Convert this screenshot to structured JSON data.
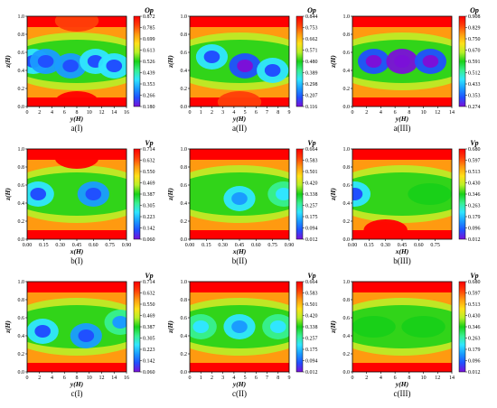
{
  "figure": {
    "colorscale": [
      "#7b10d8",
      "#2050ff",
      "#1a9cff",
      "#30e6ff",
      "#38f090",
      "#18d018",
      "#b8f028",
      "#ffe018",
      "#ff9a10",
      "#ff3e08",
      "#ff0000"
    ],
    "panel_background": "#ffa000",
    "band_color": "#ff2a00"
  },
  "chart_data": [
    {
      "type": "heatmap",
      "panel_id": "a1",
      "caption": "a(I)",
      "colorbar_label": "Op",
      "xlabel": "y(H)",
      "ylabel": "z(H)",
      "x_ticks": [
        "0",
        "2",
        "4",
        "6",
        "8",
        "10",
        "12",
        "14",
        "16"
      ],
      "y_ticks": [
        "0.0",
        "0.2",
        "0.4",
        "0.6",
        "0.8",
        "1.0"
      ],
      "colorbar_ticks": [
        "0.872",
        "0.785",
        "0.699",
        "0.613",
        "0.526",
        "0.439",
        "0.353",
        "0.266",
        "0.180"
      ],
      "xlim": [
        0,
        16
      ],
      "ylim": [
        0,
        1
      ],
      "range": [
        0.18,
        0.872
      ],
      "pattern": "low values in central band (z≈0.15–0.8), high values near top and bottom walls",
      "cells": [
        {
          "x": 1,
          "z": 0.5,
          "v": 0.37
        },
        {
          "x": 3,
          "z": 0.5,
          "v": 0.35
        },
        {
          "x": 7,
          "z": 0.45,
          "v": 0.33
        },
        {
          "x": 11,
          "z": 0.5,
          "v": 0.36
        },
        {
          "x": 14,
          "z": 0.45,
          "v": 0.38
        },
        {
          "x": 8,
          "z": 0.05,
          "v": 0.85
        },
        {
          "x": 8,
          "z": 0.95,
          "v": 0.82
        }
      ]
    },
    {
      "type": "heatmap",
      "panel_id": "a2",
      "caption": "a(II)",
      "colorbar_label": "Op",
      "xlabel": "y(H)",
      "ylabel": "z(H)",
      "x_ticks": [
        "0",
        "1",
        "2",
        "3",
        "4",
        "5",
        "6",
        "7",
        "8",
        "9"
      ],
      "y_ticks": [
        "0.0",
        "0.2",
        "0.4",
        "0.6",
        "0.8",
        "1.0"
      ],
      "colorbar_ticks": [
        "0.844",
        "0.753",
        "0.662",
        "0.571",
        "0.480",
        "0.389",
        "0.298",
        "0.207",
        "0.116"
      ],
      "xlim": [
        0,
        9
      ],
      "ylim": [
        0,
        1
      ],
      "range": [
        0.116,
        0.844
      ],
      "pattern": "low-value core between z≈0.2 and 0.85, thicker toward right side",
      "cells": [
        {
          "x": 2,
          "z": 0.55,
          "v": 0.32
        },
        {
          "x": 5,
          "z": 0.45,
          "v": 0.2
        },
        {
          "x": 7.5,
          "z": 0.4,
          "v": 0.3
        },
        {
          "x": 4.5,
          "z": 0.05,
          "v": 0.8
        }
      ]
    },
    {
      "type": "heatmap",
      "panel_id": "a3",
      "caption": "a(III)",
      "colorbar_label": "Op",
      "xlabel": "y(H)",
      "ylabel": "z(H)",
      "x_ticks": [
        "0",
        "2",
        "4",
        "6",
        "8",
        "10",
        "12",
        "14"
      ],
      "y_ticks": [
        "0.0",
        "0.2",
        "0.4",
        "0.6",
        "0.8",
        "1.0"
      ],
      "colorbar_ticks": [
        "0.908",
        "0.829",
        "0.750",
        "0.670",
        "0.591",
        "0.512",
        "0.433",
        "0.353",
        "0.274"
      ],
      "xlim": [
        0,
        14
      ],
      "ylim": [
        0,
        1
      ],
      "range": [
        0.274,
        0.908
      ],
      "pattern": "smooth low-value core centered near z≈0.5",
      "cells": [
        {
          "x": 3,
          "z": 0.5,
          "v": 0.34
        },
        {
          "x": 7,
          "z": 0.5,
          "v": 0.3
        },
        {
          "x": 11,
          "z": 0.5,
          "v": 0.33
        }
      ]
    },
    {
      "type": "heatmap",
      "panel_id": "b1",
      "caption": "b(I)",
      "colorbar_label": "Vp",
      "xlabel": "x(H)",
      "ylabel": "z(H)",
      "x_ticks": [
        "0.00",
        "0.15",
        "0.30",
        "0.45",
        "0.60",
        "0.75",
        "0.90"
      ],
      "y_ticks": [
        "0.0",
        "0.2",
        "0.4",
        "0.6",
        "0.8",
        "1.0"
      ],
      "colorbar_ticks": [
        "0.714",
        "0.632",
        "0.550",
        "0.469",
        "0.387",
        "0.305",
        "0.223",
        "0.142",
        "0.060"
      ],
      "xlim": [
        0,
        0.9
      ],
      "ylim": [
        0,
        1
      ],
      "range": [
        0.06,
        0.714
      ],
      "pattern": "green band at z≈0.3–0.65 with two blue cores near x≈0.1 and x≈0.6",
      "cells": [
        {
          "x": 0.1,
          "z": 0.5,
          "v": 0.25
        },
        {
          "x": 0.6,
          "z": 0.5,
          "v": 0.22
        },
        {
          "x": 0.45,
          "z": 0.9,
          "v": 0.7
        }
      ]
    },
    {
      "type": "heatmap",
      "panel_id": "b2",
      "caption": "b(II)",
      "colorbar_label": "Vp",
      "xlabel": "x(H)",
      "ylabel": "z(H)",
      "x_ticks": [
        "0.00",
        "0.15",
        "0.30",
        "0.45",
        "0.60",
        "0.75",
        "0.90"
      ],
      "y_ticks": [
        "0.0",
        "0.2",
        "0.4",
        "0.6",
        "0.8",
        "1.0"
      ],
      "colorbar_ticks": [
        "0.664",
        "0.583",
        "0.501",
        "0.420",
        "0.338",
        "0.257",
        "0.175",
        "0.094",
        "0.012"
      ],
      "xlim": [
        0,
        0.9
      ],
      "ylim": [
        0,
        1
      ],
      "range": [
        0.012,
        0.664
      ],
      "pattern": "broad green band with blue core centered near x≈0.45, z≈0.45",
      "cells": [
        {
          "x": 0.45,
          "z": 0.45,
          "v": 0.22
        },
        {
          "x": 0.85,
          "z": 0.5,
          "v": 0.28
        }
      ]
    },
    {
      "type": "heatmap",
      "panel_id": "b3",
      "caption": "b(III)",
      "colorbar_label": "Vp",
      "xlabel": "x(H)",
      "ylabel": "z(H)",
      "x_ticks": [
        "0.00",
        "0.15",
        "0.30",
        "0.45",
        "0.60",
        "0.75"
      ],
      "y_ticks": [
        "0.0",
        "0.2",
        "0.4",
        "0.6",
        "0.8",
        "1.0"
      ],
      "colorbar_ticks": [
        "0.680",
        "0.597",
        "0.513",
        "0.430",
        "0.346",
        "0.263",
        "0.179",
        "0.096",
        "0.012"
      ],
      "xlim": [
        0,
        0.9
      ],
      "ylim": [
        0,
        1
      ],
      "range": [
        0.012,
        0.68
      ],
      "pattern": "blue core at left edge z≈0.5, green region on right, red column near x≈0.3",
      "cells": [
        {
          "x": 0.02,
          "z": 0.5,
          "v": 0.2
        },
        {
          "x": 0.7,
          "z": 0.5,
          "v": 0.35
        },
        {
          "x": 0.3,
          "z": 0.1,
          "v": 0.68
        }
      ]
    },
    {
      "type": "heatmap",
      "panel_id": "c1",
      "caption": "c(I)",
      "colorbar_label": "Vp",
      "xlabel": "y(H)",
      "ylabel": "z(H)",
      "x_ticks": [
        "0",
        "2",
        "4",
        "6",
        "8",
        "10",
        "12",
        "14",
        "16"
      ],
      "y_ticks": [
        "0.0",
        "0.2",
        "0.4",
        "0.6",
        "0.8",
        "1.0"
      ],
      "colorbar_ticks": [
        "0.714",
        "0.632",
        "0.550",
        "0.469",
        "0.387",
        "0.305",
        "0.223",
        "0.142",
        "0.060"
      ],
      "xlim": [
        0,
        16
      ],
      "ylim": [
        0,
        1
      ],
      "range": [
        0.06,
        0.714
      ],
      "pattern": "irregular green/blue patches along z≈0.3–0.7",
      "cells": [
        {
          "x": 2.5,
          "z": 0.45,
          "v": 0.25
        },
        {
          "x": 9.5,
          "z": 0.4,
          "v": 0.2
        },
        {
          "x": 15,
          "z": 0.55,
          "v": 0.3
        }
      ]
    },
    {
      "type": "heatmap",
      "panel_id": "c2",
      "caption": "c(II)",
      "colorbar_label": "Vp",
      "xlabel": "y(H)",
      "ylabel": "z(H)",
      "x_ticks": [
        "0",
        "1",
        "2",
        "3",
        "4",
        "5",
        "6",
        "7",
        "8",
        "9"
      ],
      "y_ticks": [
        "0.0",
        "0.2",
        "0.4",
        "0.6",
        "0.8",
        "1.0"
      ],
      "colorbar_ticks": [
        "0.664",
        "0.583",
        "0.501",
        "0.420",
        "0.338",
        "0.257",
        "0.175",
        "0.094",
        "0.012"
      ],
      "xlim": [
        0,
        9
      ],
      "ylim": [
        0,
        1
      ],
      "range": [
        0.012,
        0.664
      ],
      "pattern": "green band with blue cores at y≈1, 4.5 and 8",
      "cells": [
        {
          "x": 1,
          "z": 0.5,
          "v": 0.28
        },
        {
          "x": 4.5,
          "z": 0.5,
          "v": 0.22
        },
        {
          "x": 8,
          "z": 0.5,
          "v": 0.28
        }
      ]
    },
    {
      "type": "heatmap",
      "panel_id": "c3",
      "caption": "c(III)",
      "colorbar_label": "Vp",
      "xlabel": "y(H)",
      "ylabel": "z(H)",
      "x_ticks": [
        "0",
        "2",
        "4",
        "6",
        "8",
        "10",
        "12",
        "14"
      ],
      "y_ticks": [
        "0.0",
        "0.2",
        "0.4",
        "0.6",
        "0.8",
        "1.0"
      ],
      "colorbar_ticks": [
        "0.680",
        "0.597",
        "0.513",
        "0.430",
        "0.346",
        "0.263",
        "0.179",
        "0.096",
        "0.012"
      ],
      "xlim": [
        0,
        14
      ],
      "ylim": [
        0,
        1
      ],
      "range": [
        0.012,
        0.68
      ],
      "pattern": "green band at z≈0.35–0.65 with small cyan spots",
      "cells": [
        {
          "x": 3,
          "z": 0.5,
          "v": 0.36
        },
        {
          "x": 10,
          "z": 0.5,
          "v": 0.36
        }
      ]
    }
  ]
}
